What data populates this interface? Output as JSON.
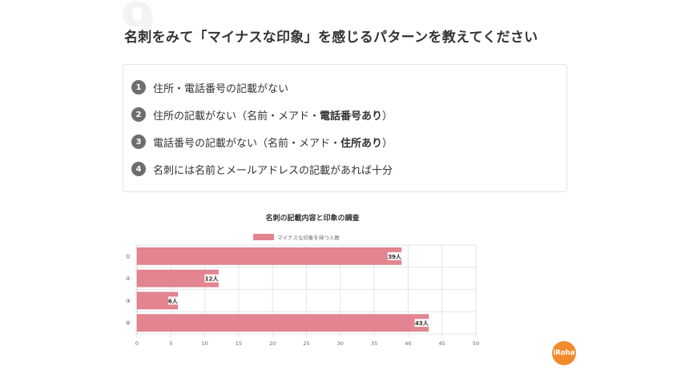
{
  "background_numeral": "9",
  "question": "名刺をみて「マイナスな印象」を感じるパターンを教えてください",
  "options": [
    {
      "number": "1",
      "text": "住所・電話番号の記載がない",
      "emphasis": "",
      "suffix": ""
    },
    {
      "number": "2",
      "text": "住所の記載がない（名前・メアド・",
      "emphasis": "電話番号あり",
      "suffix": "）"
    },
    {
      "number": "3",
      "text": "電話番号の記載がない（名前・メアド・",
      "emphasis": "住所あり",
      "suffix": "）"
    },
    {
      "number": "4",
      "text": "名刺には名前とメールアドレスの記載があれば十分",
      "emphasis": "",
      "suffix": ""
    }
  ],
  "brand": "iRoha",
  "colors": {
    "bar": "#e38590",
    "bar_stroke": "#d9737f",
    "number_badge": "#6e6e6e",
    "brand": "#f08c2e"
  },
  "chart_data": {
    "type": "bar",
    "orientation": "horizontal",
    "title": "名刺の記載内容と印象の調査",
    "categories": [
      "①",
      "②",
      "③",
      "④"
    ],
    "series": [
      {
        "name": "マイナスな印象を持つ人数",
        "values": [
          39,
          12,
          6,
          43
        ]
      }
    ],
    "data_labels": [
      "39人",
      "12人",
      "6人",
      "43人"
    ],
    "x_ticks": [
      0,
      5,
      10,
      15,
      20,
      25,
      30,
      35,
      40,
      45,
      50
    ],
    "xlim": [
      0,
      50
    ],
    "grid": true,
    "legend_position": "top"
  }
}
